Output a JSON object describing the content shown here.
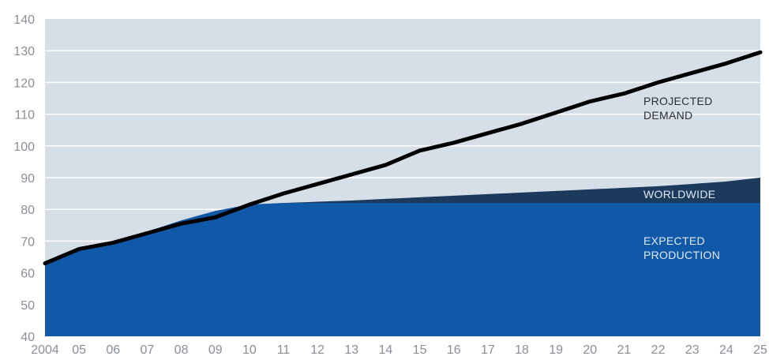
{
  "chart_data": {
    "type": "area",
    "x_tick_labels": [
      "2004",
      "05",
      "06",
      "07",
      "08",
      "09",
      "10",
      "11",
      "12",
      "13",
      "14",
      "15",
      "16",
      "17",
      "18",
      "19",
      "20",
      "21",
      "22",
      "23",
      "24",
      "25"
    ],
    "x": [
      2004,
      2005,
      2006,
      2007,
      2008,
      2009,
      2010,
      2011,
      2012,
      2013,
      2014,
      2015,
      2016,
      2017,
      2018,
      2019,
      2020,
      2021,
      2022,
      2023,
      2024,
      2025
    ],
    "ylim": [
      40,
      140
    ],
    "y_ticks": [
      40,
      50,
      60,
      70,
      80,
      90,
      100,
      110,
      120,
      130,
      140
    ],
    "grid": true,
    "series": [
      {
        "name_lines": [
          "EXPECTED",
          "PRODUCTION"
        ],
        "style": "area",
        "color": "#1059a8",
        "values": [
          63,
          67,
          69.5,
          73,
          76.5,
          79.5,
          81.5,
          82,
          82,
          82,
          82,
          82,
          82,
          82,
          82,
          82,
          82,
          82,
          82,
          82,
          82,
          82
        ]
      },
      {
        "name_lines": [
          "WORLDWIDE"
        ],
        "style": "area",
        "color": "#1c3a5c",
        "values": [
          63,
          67,
          69.5,
          73,
          76.5,
          79.5,
          81.5,
          82,
          82.4,
          82.8,
          83.3,
          83.8,
          84.3,
          84.8,
          85.3,
          85.8,
          86.3,
          86.8,
          87.3,
          88,
          88.8,
          90
        ]
      },
      {
        "name_lines": [
          "PROJECTED",
          "DEMAND"
        ],
        "style": "line",
        "color": "#000000",
        "values": [
          63,
          67.5,
          69.5,
          72.5,
          75.5,
          77.5,
          81.5,
          85,
          88,
          91,
          94,
          98.5,
          101,
          104,
          107,
          110.5,
          114,
          116.5,
          120,
          123,
          126,
          129.5
        ]
      }
    ],
    "colors": {
      "plot_background": "#d6dee8",
      "grid": "#ffffff",
      "label_on_light": "#2a2f36",
      "label_on_dark": "#dfe8f3"
    }
  }
}
